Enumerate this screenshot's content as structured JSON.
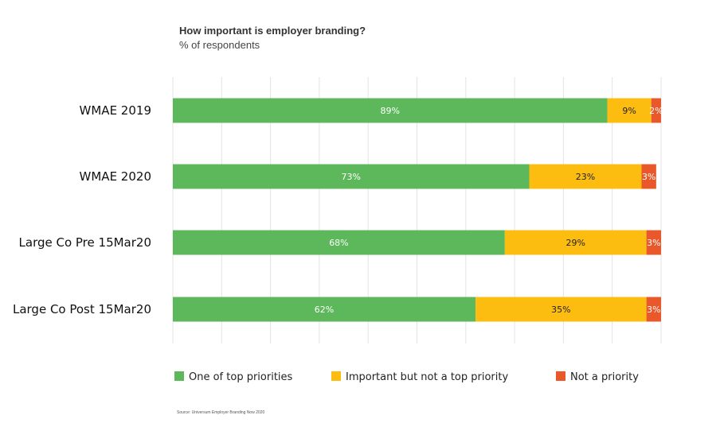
{
  "chart_data": {
    "type": "bar",
    "orientation": "horizontal",
    "stacked": true,
    "title": "How important is employer branding?",
    "subtitle": "% of respondents",
    "categories": [
      "WMAE 2019",
      "WMAE 2020",
      "Large Co Pre 15Mar20",
      "Large Co Post 15Mar20"
    ],
    "series": [
      {
        "name": "One of top priorities",
        "values": [
          89,
          73,
          68,
          62
        ],
        "color": "#5DB85C",
        "label_color": "#ffffff"
      },
      {
        "name": "Important but not a top priority",
        "values": [
          9,
          23,
          29,
          35
        ],
        "color": "#FCBD10",
        "label_color": "#222222"
      },
      {
        "name": "Not a priority",
        "values": [
          2,
          3,
          3,
          3
        ],
        "color": "#E8582A",
        "label_color": "#ffffff"
      }
    ],
    "xlim": [
      0,
      100
    ],
    "grid": true,
    "legend_position": "bottom",
    "source": "Source: Universum Employer Branding Now 2020"
  }
}
